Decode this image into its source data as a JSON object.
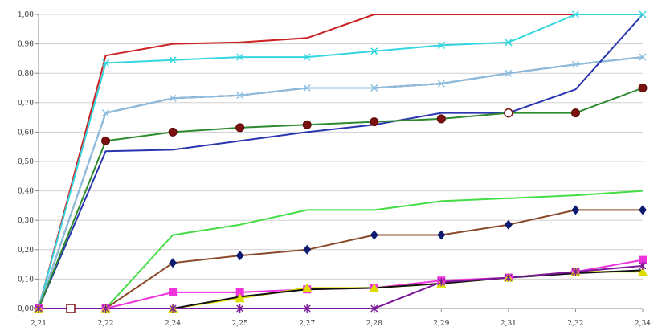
{
  "chart_data": {
    "type": "line",
    "title": "",
    "xlabel": "",
    "ylabel": "",
    "x": [
      "2,21",
      "2,22",
      "2,24",
      "2,25",
      "2,27",
      "2,28",
      "2,29",
      "2,31",
      "2,32",
      "2,34"
    ],
    "y_ticks": [
      "0,00",
      "0,10",
      "0,20",
      "0,30",
      "0,40",
      "0,50",
      "0,60",
      "0,70",
      "0,80",
      "0,90",
      "1,00"
    ],
    "ylim": [
      0,
      1
    ],
    "grid": "horizontal",
    "legend": "none",
    "series": [
      {
        "color": "#cc2222",
        "marker": "none",
        "values": [
          0,
          0.86,
          0.9,
          0.905,
          0.92,
          1.0,
          1.0,
          1.0,
          1.0,
          1.0
        ]
      },
      {
        "color": "#33d6e0",
        "marker": "x",
        "values": [
          0,
          0.835,
          0.845,
          0.855,
          0.855,
          0.875,
          0.895,
          0.905,
          1.0,
          1.0
        ]
      },
      {
        "color": "#101060",
        "marker": "none",
        "values": [
          0,
          0.665,
          0.715,
          0.725,
          0.75,
          0.75,
          0.765,
          0.8,
          0.83,
          0.855
        ]
      },
      {
        "color": "#8fc0e0",
        "marker": "x",
        "values": [
          0,
          0.665,
          0.715,
          0.725,
          0.75,
          0.75,
          0.765,
          0.8,
          0.83,
          0.855
        ]
      },
      {
        "color": "#2a35b0",
        "marker": "none",
        "values": [
          0,
          0.535,
          0.54,
          0.57,
          0.6,
          0.625,
          0.665,
          0.665,
          0.745,
          1.0
        ]
      },
      {
        "color": "#2e8a2e",
        "marker": "circle",
        "values": [
          0,
          0.57,
          0.6,
          0.615,
          0.625,
          0.635,
          0.645,
          0.665,
          0.665,
          0.75
        ]
      },
      {
        "color": "#44dd44",
        "marker": "none",
        "values": [
          0,
          0,
          0.25,
          0.285,
          0.335,
          0.335,
          0.365,
          0.375,
          0.385,
          0.4
        ]
      },
      {
        "color": "#8a4a2a",
        "marker": "diamond",
        "values": [
          0,
          0,
          0.155,
          0.18,
          0.2,
          0.25,
          0.25,
          0.285,
          0.335,
          0.335
        ]
      },
      {
        "color": "#ee33dd",
        "marker": "square",
        "values": [
          0,
          0,
          0.055,
          0.055,
          0.065,
          0.07,
          0.095,
          0.105,
          0.125,
          0.165
        ]
      },
      {
        "color": "#dddd00",
        "marker": "triangle",
        "values": [
          0,
          0,
          0,
          0.035,
          0.07,
          0.07,
          0.085,
          0.105,
          0.125,
          0.125
        ]
      },
      {
        "color": "#111111",
        "marker": "none",
        "values": [
          0,
          0,
          0,
          0.04,
          0.065,
          0.07,
          0.085,
          0.105,
          0.12,
          0.13
        ]
      },
      {
        "color": "#7a1a9a",
        "marker": "asterisk",
        "values": [
          0,
          0,
          0,
          0,
          0,
          0,
          0.09,
          0.105,
          0.125,
          0.145
        ]
      }
    ]
  }
}
